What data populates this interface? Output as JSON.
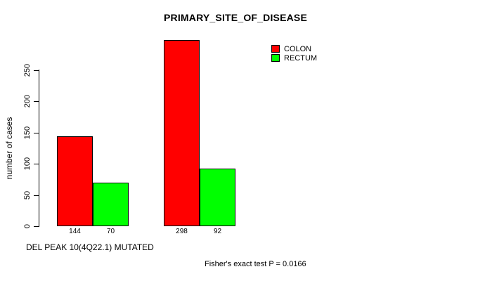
{
  "chart_data": {
    "type": "bar",
    "title": "PRIMARY_SITE_OF_DISEASE",
    "ylabel": "number of cases",
    "xlabel": "DEL PEAK 10(4Q22.1) MUTATED",
    "annotation": "Fisher's exact test P = 0.0166",
    "ylim": [
      0,
      250
    ],
    "yticks": [
      0,
      50,
      100,
      150,
      200,
      250
    ],
    "grid": false,
    "legend": {
      "position": "top-right",
      "entries": [
        {
          "label": "COLON",
          "color": "#ff0000"
        },
        {
          "label": "RECTUM",
          "color": "#00ff00"
        }
      ]
    },
    "series": [
      {
        "name": "COLON",
        "values": [
          144,
          298
        ]
      },
      {
        "name": "RECTUM",
        "values": [
          70,
          92
        ]
      }
    ],
    "value_labels": [
      [
        "144",
        "70"
      ],
      [
        "298",
        "92"
      ]
    ]
  },
  "colors": {
    "background": "#ffffff",
    "axis": "#000000",
    "bar_border": "#000000",
    "text": "#000000"
  }
}
